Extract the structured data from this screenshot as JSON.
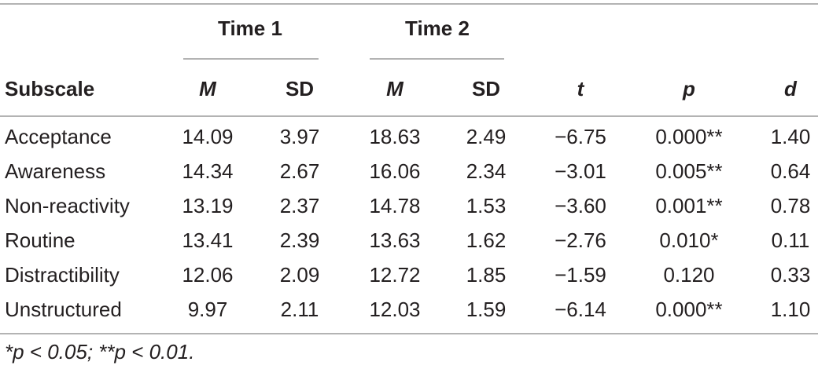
{
  "table": {
    "groups": [
      "Time 1",
      "Time 2"
    ],
    "columns": [
      "Subscale",
      "M",
      "SD",
      "M",
      "SD",
      "t",
      "p",
      "d"
    ],
    "rows": [
      [
        "Acceptance",
        "14.09",
        "3.97",
        "18.63",
        "2.49",
        "−6.75",
        "0.000**",
        "1.40"
      ],
      [
        "Awareness",
        "14.34",
        "2.67",
        "16.06",
        "2.34",
        "−3.01",
        "0.005**",
        "0.64"
      ],
      [
        "Non-reactivity",
        "13.19",
        "2.37",
        "14.78",
        "1.53",
        "−3.60",
        "0.001**",
        "0.78"
      ],
      [
        "Routine",
        "13.41",
        "2.39",
        "13.63",
        "1.62",
        "−2.76",
        "0.010*",
        "0.11"
      ],
      [
        "Distractibility",
        "12.06",
        "2.09",
        "12.72",
        "1.85",
        "−1.59",
        "0.120",
        "0.33"
      ],
      [
        "Unstructured",
        "9.97",
        "2.11",
        "12.03",
        "1.59",
        "−6.14",
        "0.000**",
        "1.10"
      ]
    ]
  },
  "footnote": "*p < 0.05; **p < 0.01."
}
